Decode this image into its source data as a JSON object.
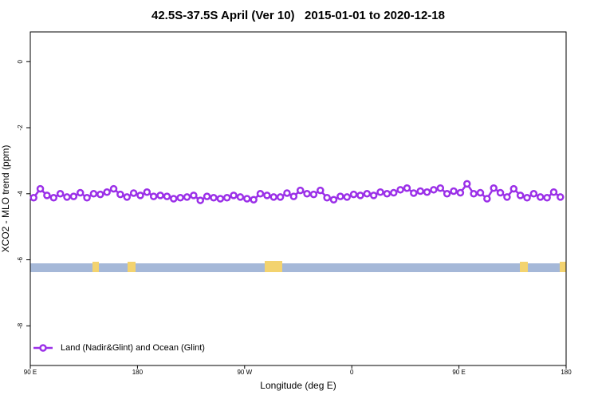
{
  "chart_data": {
    "type": "line",
    "title": "42.5S-37.5S April (Ver 10)   2015-01-01 to 2020-12-18",
    "xlabel": "Longitude (deg E)",
    "ylabel": "XCO2 - MLO trend (ppm)",
    "xlim": [
      90,
      540
    ],
    "ylim": [
      -9.2,
      0.9
    ],
    "xticks": [
      {
        "value": 90,
        "label": "90 E"
      },
      180,
      {
        "value": 270,
        "label": "90 W"
      },
      {
        "value": 360,
        "label": "0"
      },
      {
        "value": 450,
        "label": "90 E"
      },
      {
        "value": 540,
        "label": "180"
      }
    ],
    "yticks": [
      0,
      -2,
      -4,
      -6,
      -8
    ],
    "legend": "lower left",
    "x": [
      92.8,
      98.4,
      104,
      109.6,
      115.2,
      120.8,
      126.4,
      132,
      137.6,
      143.2,
      148.8,
      154.4,
      160,
      165.6,
      171.2,
      176.8,
      182.4,
      188,
      193.6,
      199.2,
      204.8,
      210.4,
      216,
      221.6,
      227.2,
      232.8,
      238.4,
      244,
      249.6,
      255.2,
      260.8,
      266.4,
      272,
      277.6,
      283.2,
      288.8,
      294.4,
      300,
      305.6,
      311.2,
      316.8,
      322.4,
      328,
      333.6,
      339.2,
      344.8,
      350.4,
      356,
      361.6,
      367.2,
      372.8,
      378.4,
      384,
      389.6,
      395.2,
      400.8,
      406.4,
      412,
      417.6,
      423.2,
      428.8,
      434.4,
      440,
      445.6,
      451.2,
      456.8,
      462.4,
      468,
      473.6,
      479.2,
      484.8,
      490.4,
      496,
      501.6,
      507.2,
      512.8,
      518.4,
      524,
      529.6,
      535.2
    ],
    "series": [
      {
        "name": "Land (Nadir&Glint) and Ocean (Glint)",
        "color": "#9b30e8",
        "values": [
          -4.12,
          -3.85,
          -4.05,
          -4.12,
          -4.0,
          -4.1,
          -4.08,
          -3.97,
          -4.12,
          -4.0,
          -4.02,
          -3.95,
          -3.85,
          -4.02,
          -4.1,
          -3.98,
          -4.05,
          -3.95,
          -4.08,
          -4.05,
          -4.08,
          -4.15,
          -4.12,
          -4.1,
          -4.05,
          -4.2,
          -4.08,
          -4.12,
          -4.15,
          -4.12,
          -4.05,
          -4.1,
          -4.15,
          -4.18,
          -4.0,
          -4.05,
          -4.1,
          -4.1,
          -3.98,
          -4.08,
          -3.9,
          -4.0,
          -4.02,
          -3.9,
          -4.12,
          -4.18,
          -4.08,
          -4.1,
          -4.02,
          -4.05,
          -4.0,
          -4.05,
          -3.95,
          -4.0,
          -3.97,
          -3.88,
          -3.83,
          -3.98,
          -3.92,
          -3.95,
          -3.88,
          -3.83,
          -4.0,
          -3.92,
          -3.97,
          -3.7,
          -4.0,
          -3.97,
          -4.15,
          -3.83,
          -3.97,
          -4.1,
          -3.85,
          -4.05,
          -4.12,
          -4.0,
          -4.1,
          -4.12,
          -3.95,
          -4.1
        ]
      }
    ]
  }
}
